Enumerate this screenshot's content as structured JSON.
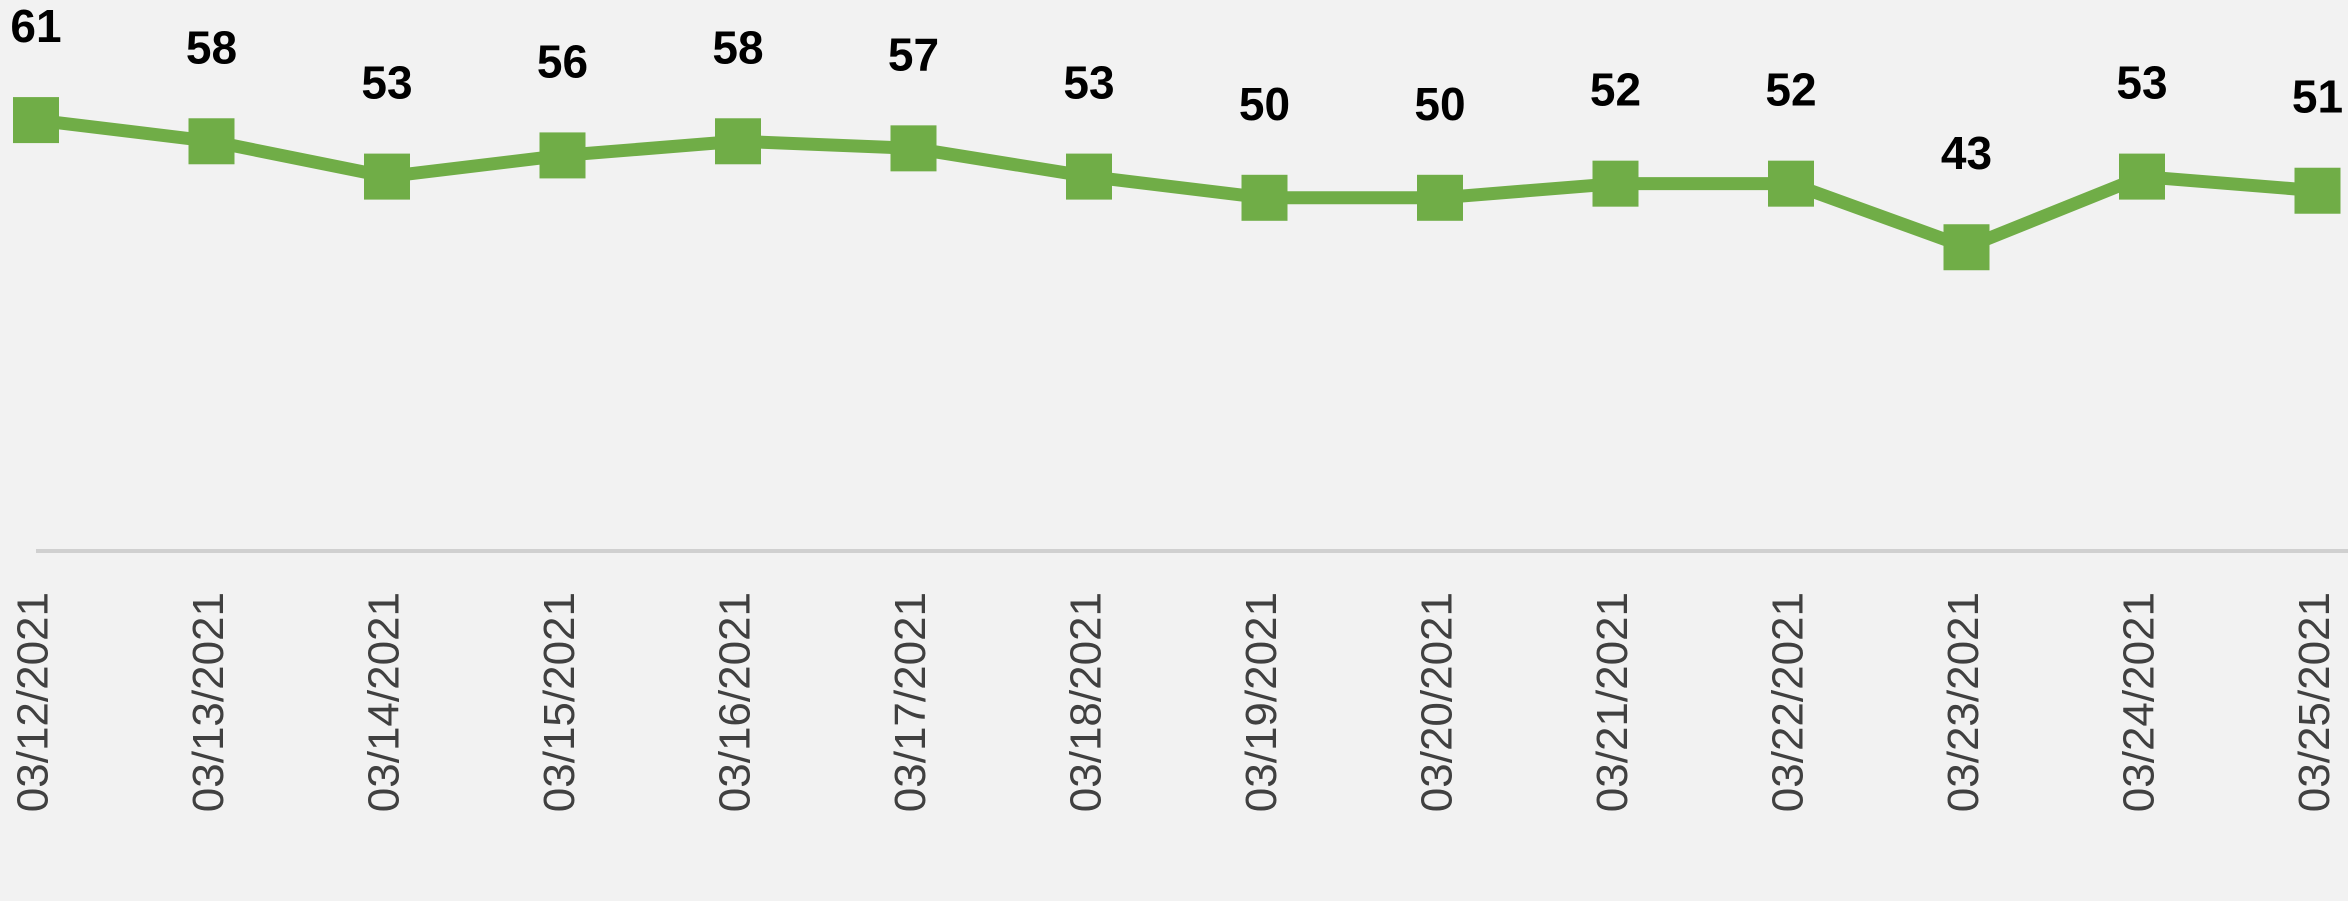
{
  "chart_data": {
    "type": "line",
    "categories": [
      "03/12/2021",
      "03/13/2021",
      "03/14/2021",
      "03/15/2021",
      "03/16/2021",
      "03/17/2021",
      "03/18/2021",
      "03/19/2021",
      "03/20/2021",
      "03/21/2021",
      "03/22/2021",
      "03/23/2021",
      "03/24/2021",
      "03/25/2021"
    ],
    "values": [
      61,
      58,
      53,
      56,
      58,
      57,
      53,
      50,
      50,
      52,
      52,
      43,
      53,
      51
    ],
    "color": "#70ad47",
    "ylim": [
      0,
      78
    ]
  }
}
